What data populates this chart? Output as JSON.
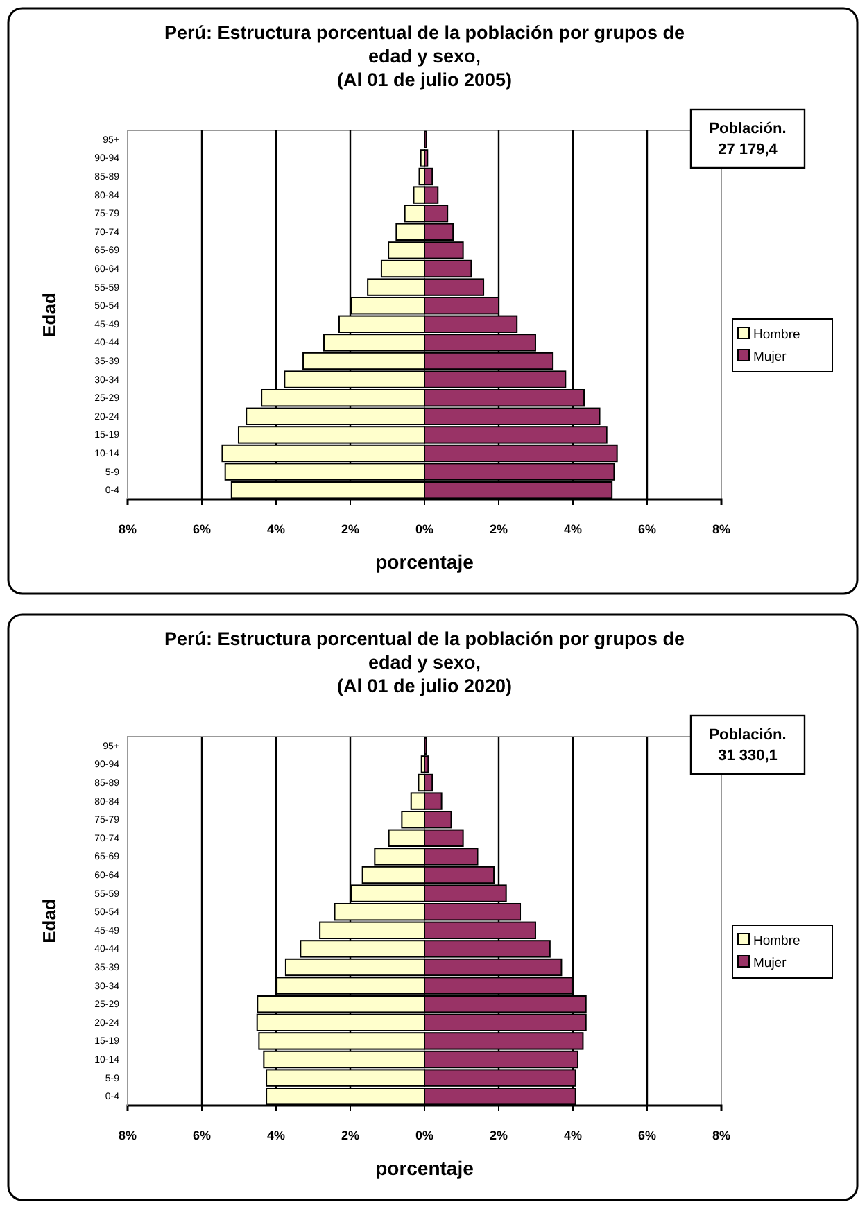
{
  "chart_data": [
    {
      "type": "bar",
      "orientation": "horizontal",
      "stacked": true,
      "title": "Perú: Estructura porcentual de la población por grupos de edad y sexo,",
      "subtitle": "(Al 01 de julio 2005)",
      "xlabel": "porcentaje",
      "ylabel": "Edad",
      "categories": [
        "95+",
        "90-94",
        "85-89",
        "80-84",
        "75-79",
        "70-74",
        "65-69",
        "60-64",
        "55-59",
        "50-54",
        "45-49",
        "40-44",
        "35-39",
        "30-34",
        "25-29",
        "20-24",
        "15-19",
        "10-14",
        "5-9",
        "0-4"
      ],
      "series": [
        {
          "name": "Hombre",
          "color": "#ffffcc",
          "values": [
            null,
            -0.1,
            -0.14,
            -0.29,
            -0.53,
            -0.76,
            -0.97,
            -1.16,
            -1.53,
            -1.97,
            -2.3,
            -2.71,
            -3.27,
            -3.77,
            -4.39,
            -4.8,
            -5.01,
            -5.45,
            -5.37,
            -5.2
          ]
        },
        {
          "name": "Mujer",
          "color": "#993366",
          "values": [
            0.05,
            0.08,
            0.21,
            0.36,
            0.62,
            0.77,
            1.04,
            1.26,
            1.59,
            2.0,
            2.49,
            2.99,
            3.46,
            3.8,
            4.3,
            4.72,
            4.91,
            5.19,
            5.11,
            5.05
          ]
        }
      ],
      "xlim": [
        -8,
        8
      ],
      "xticks": [
        {
          "value": -8,
          "label": "8%"
        },
        {
          "value": -6,
          "label": "6%"
        },
        {
          "value": -4,
          "label": "4%"
        },
        {
          "value": -2,
          "label": "2%"
        },
        {
          "value": 0,
          "label": "0%"
        },
        {
          "value": 2,
          "label": "2%"
        },
        {
          "value": 4,
          "label": "4%"
        },
        {
          "value": 6,
          "label": "6%"
        },
        {
          "value": 8,
          "label": "8%"
        }
      ],
      "grid": "x",
      "legend": "right",
      "annotations": [
        "Población.\n27 179,4"
      ]
    },
    {
      "type": "bar",
      "orientation": "horizontal",
      "stacked": true,
      "title": "Perú: Estructura porcentual de la población por grupos de edad y sexo,",
      "subtitle": "(Al 01 de julio 2020)",
      "xlabel": "porcentaje",
      "ylabel": "Edad",
      "categories": [
        "95+",
        "90-94",
        "85-89",
        "80-84",
        "75-79",
        "70-74",
        "65-69",
        "60-64",
        "55-59",
        "50-54",
        "45-49",
        "40-44",
        "35-39",
        "30-34",
        "25-29",
        "20-24",
        "15-19",
        "10-14",
        "5-9",
        "0-4"
      ],
      "series": [
        {
          "name": "Hombre",
          "color": "#ffffcc",
          "values": [
            null,
            -0.08,
            -0.16,
            -0.36,
            -0.61,
            -0.96,
            -1.34,
            -1.67,
            -1.98,
            -2.42,
            -2.82,
            -3.34,
            -3.74,
            -3.98,
            -4.5,
            -4.51,
            -4.46,
            -4.33,
            -4.26,
            -4.26
          ]
        },
        {
          "name": "Mujer",
          "color": "#993366",
          "values": [
            0.05,
            0.1,
            0.21,
            0.46,
            0.72,
            1.04,
            1.43,
            1.87,
            2.2,
            2.58,
            2.99,
            3.38,
            3.69,
            3.98,
            4.35,
            4.35,
            4.27,
            4.13,
            4.07,
            4.07
          ]
        }
      ],
      "xlim": [
        -8,
        8
      ],
      "xticks": [
        {
          "value": -8,
          "label": "8%"
        },
        {
          "value": -6,
          "label": "6%"
        },
        {
          "value": -4,
          "label": "4%"
        },
        {
          "value": -2,
          "label": "2%"
        },
        {
          "value": 0,
          "label": "0%"
        },
        {
          "value": 2,
          "label": "2%"
        },
        {
          "value": 4,
          "label": "4%"
        },
        {
          "value": 6,
          "label": "6%"
        },
        {
          "value": 8,
          "label": "8%"
        }
      ],
      "grid": "x",
      "legend": "right",
      "annotations": [
        "Población.\n31 330,1"
      ]
    }
  ]
}
